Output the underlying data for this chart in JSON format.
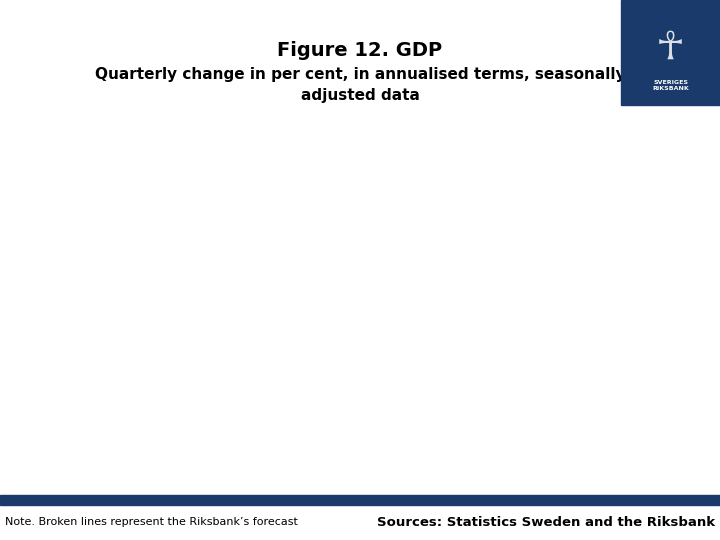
{
  "title": "Figure 12. GDP",
  "subtitle": "Quarterly change in per cent, in annualised terms, seasonally\nadjusted data",
  "footer_note": "Note. Broken lines represent the Riksbank’s forecast",
  "footer_sources": "Sources: Statistics Sweden and the Riksbank",
  "background_color": "#ffffff",
  "bar_color": "#1a3a6b",
  "logo_color": "#1a3a6b",
  "title_fontsize": 14,
  "subtitle_fontsize": 11,
  "footer_note_fontsize": 8,
  "footer_sources_fontsize": 9.5
}
